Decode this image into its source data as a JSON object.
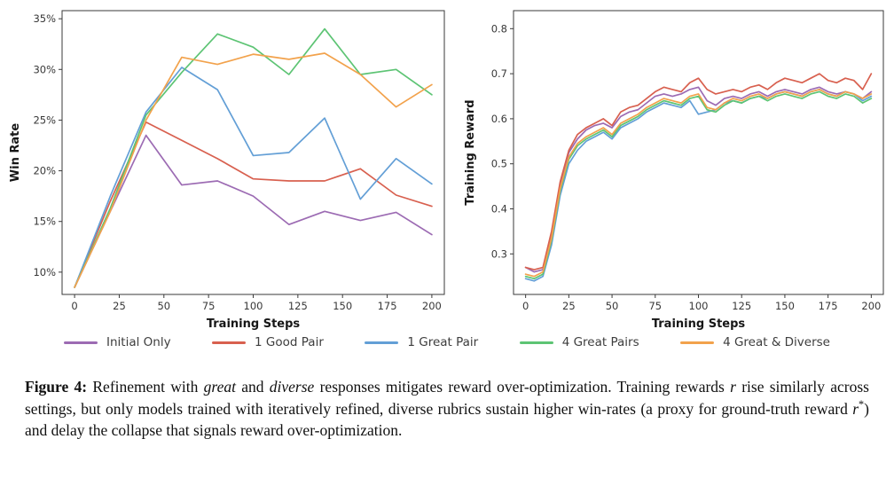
{
  "legend": {
    "items": [
      {
        "label": "Initial Only",
        "color": "#9c6bb3"
      },
      {
        "label": "1 Good Pair",
        "color": "#d8604f"
      },
      {
        "label": "1 Great Pair",
        "color": "#639fd6"
      },
      {
        "label": "4 Great Pairs",
        "color": "#5dc474"
      },
      {
        "label": "4 Great & Diverse",
        "color": "#f2a24c"
      }
    ]
  },
  "chart_data": [
    {
      "type": "line",
      "title": "",
      "xlabel": "Training Steps",
      "ylabel": "Win Rate",
      "xlim": [
        -7,
        207
      ],
      "ylim": [
        7.8,
        35.8
      ],
      "xticks": [
        0,
        25,
        50,
        75,
        100,
        125,
        150,
        175,
        200
      ],
      "yticks": [
        10,
        15,
        20,
        25,
        30,
        35
      ],
      "ytick_suffix": "%",
      "grid": false,
      "legend_position": "below-figure",
      "x": [
        0,
        20,
        40,
        60,
        80,
        100,
        120,
        140,
        160,
        180,
        200
      ],
      "series": [
        {
          "name": "Initial Only",
          "color": "#9c6bb3",
          "values": [
            8.5,
            16.0,
            23.5,
            18.6,
            19.0,
            17.5,
            14.7,
            16.0,
            15.1,
            15.9,
            13.7
          ]
        },
        {
          "name": "1 Good Pair",
          "color": "#d8604f",
          "values": [
            8.5,
            17.0,
            24.8,
            23.0,
            21.2,
            19.2,
            19.0,
            19.0,
            20.2,
            17.6,
            16.5
          ]
        },
        {
          "name": "1 Great Pair",
          "color": "#639fd6",
          "values": [
            8.5,
            17.5,
            25.8,
            30.2,
            28.0,
            21.5,
            21.8,
            25.2,
            17.2,
            21.2,
            18.7
          ]
        },
        {
          "name": "4 Great Pairs",
          "color": "#5dc474",
          "values": [
            8.5,
            16.3,
            25.5,
            29.7,
            33.5,
            32.2,
            29.5,
            34.0,
            29.5,
            30.0,
            27.5
          ]
        },
        {
          "name": "4 Great & Diverse",
          "color": "#f2a24c",
          "values": [
            8.5,
            16.0,
            25.0,
            31.2,
            30.5,
            31.5,
            31.0,
            31.6,
            29.5,
            26.3,
            28.5
          ]
        }
      ]
    },
    {
      "type": "line",
      "title": "",
      "xlabel": "Training Steps",
      "ylabel": "Training Reward",
      "xlim": [
        -7,
        207
      ],
      "ylim": [
        0.21,
        0.84
      ],
      "xticks": [
        0,
        25,
        50,
        75,
        100,
        125,
        150,
        175,
        200
      ],
      "yticks": [
        0.3,
        0.4,
        0.5,
        0.6,
        0.7,
        0.8
      ],
      "ytick_decimals": 1,
      "grid": false,
      "legend_position": "below-figure",
      "x": [
        0,
        5,
        10,
        15,
        20,
        25,
        30,
        35,
        40,
        45,
        50,
        55,
        60,
        65,
        70,
        75,
        80,
        85,
        90,
        95,
        100,
        105,
        110,
        115,
        120,
        125,
        130,
        135,
        140,
        145,
        150,
        155,
        160,
        165,
        170,
        175,
        180,
        185,
        190,
        195,
        200
      ],
      "series": [
        {
          "name": "Initial Only",
          "color": "#9c6bb3",
          "values": [
            0.27,
            0.26,
            0.265,
            0.34,
            0.45,
            0.525,
            0.555,
            0.575,
            0.585,
            0.59,
            0.58,
            0.605,
            0.615,
            0.62,
            0.635,
            0.65,
            0.655,
            0.65,
            0.655,
            0.665,
            0.67,
            0.64,
            0.63,
            0.645,
            0.65,
            0.645,
            0.655,
            0.66,
            0.65,
            0.66,
            0.665,
            0.66,
            0.655,
            0.665,
            0.67,
            0.66,
            0.655,
            0.66,
            0.655,
            0.645,
            0.66
          ]
        },
        {
          "name": "1 Good Pair",
          "color": "#d8604f",
          "values": [
            0.27,
            0.265,
            0.27,
            0.35,
            0.46,
            0.53,
            0.565,
            0.58,
            0.59,
            0.6,
            0.585,
            0.615,
            0.625,
            0.63,
            0.645,
            0.66,
            0.67,
            0.665,
            0.66,
            0.68,
            0.69,
            0.665,
            0.655,
            0.66,
            0.665,
            0.66,
            0.67,
            0.675,
            0.665,
            0.68,
            0.69,
            0.685,
            0.68,
            0.69,
            0.7,
            0.685,
            0.68,
            0.69,
            0.685,
            0.665,
            0.7
          ]
        },
        {
          "name": "1 Great Pair",
          "color": "#639fd6",
          "values": [
            0.245,
            0.24,
            0.25,
            0.32,
            0.43,
            0.5,
            0.53,
            0.55,
            0.56,
            0.57,
            0.555,
            0.58,
            0.59,
            0.6,
            0.615,
            0.625,
            0.635,
            0.63,
            0.625,
            0.64,
            0.61,
            0.615,
            0.62,
            0.635,
            0.64,
            0.635,
            0.645,
            0.65,
            0.645,
            0.655,
            0.66,
            0.655,
            0.65,
            0.66,
            0.665,
            0.655,
            0.65,
            0.66,
            0.655,
            0.64,
            0.65
          ]
        },
        {
          "name": "4 Great Pairs",
          "color": "#5dc474",
          "values": [
            0.25,
            0.245,
            0.255,
            0.33,
            0.44,
            0.51,
            0.54,
            0.555,
            0.565,
            0.575,
            0.56,
            0.585,
            0.595,
            0.605,
            0.62,
            0.63,
            0.64,
            0.635,
            0.63,
            0.645,
            0.65,
            0.62,
            0.615,
            0.63,
            0.64,
            0.635,
            0.645,
            0.65,
            0.64,
            0.65,
            0.655,
            0.65,
            0.645,
            0.655,
            0.66,
            0.65,
            0.645,
            0.655,
            0.65,
            0.635,
            0.645
          ]
        },
        {
          "name": "4 Great & Diverse",
          "color": "#f2a24c",
          "values": [
            0.255,
            0.25,
            0.26,
            0.335,
            0.445,
            0.515,
            0.545,
            0.56,
            0.57,
            0.58,
            0.565,
            0.59,
            0.6,
            0.61,
            0.625,
            0.635,
            0.645,
            0.64,
            0.635,
            0.65,
            0.655,
            0.625,
            0.62,
            0.635,
            0.645,
            0.64,
            0.65,
            0.655,
            0.645,
            0.655,
            0.66,
            0.655,
            0.65,
            0.66,
            0.665,
            0.655,
            0.65,
            0.66,
            0.655,
            0.645,
            0.655
          ]
        }
      ]
    }
  ],
  "caption": {
    "segments": [
      {
        "text": "Figure 4:",
        "style": "bold"
      },
      {
        "text": " Refinement with ",
        "style": "normal"
      },
      {
        "text": "great",
        "style": "italic"
      },
      {
        "text": " and ",
        "style": "normal"
      },
      {
        "text": "diverse",
        "style": "italic"
      },
      {
        "text": " responses mitigates reward over-optimization. Training rewards ",
        "style": "normal"
      },
      {
        "text": "r",
        "style": "italic"
      },
      {
        "text": " rise similarly across settings, but only models trained with iteratively refined, diverse rubrics sustain higher win-rates (a proxy for ground-truth reward ",
        "style": "normal"
      },
      {
        "text": "r",
        "style": "italic"
      },
      {
        "text": "*",
        "style": "sup"
      },
      {
        "text": ") and delay the collapse that signals reward over-optimization.",
        "style": "normal"
      }
    ]
  }
}
